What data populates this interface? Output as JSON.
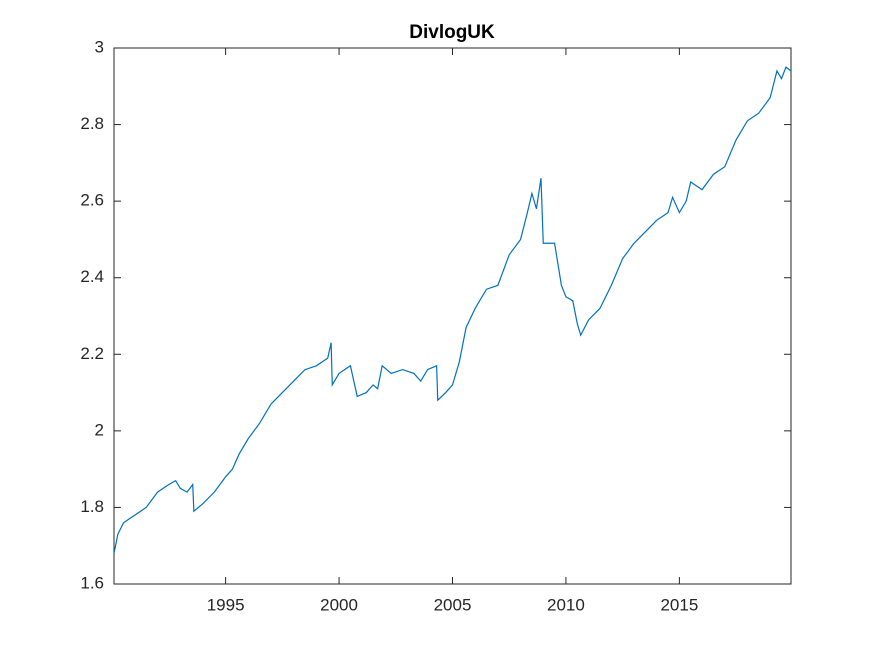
{
  "chart_data": {
    "type": "line",
    "title": "DivlogUK",
    "x": [
      1990.08,
      1990.25,
      1990.5,
      1991.0,
      1991.5,
      1992.0,
      1992.5,
      1992.8,
      1993.0,
      1993.3,
      1993.55,
      1993.6,
      1994.0,
      1994.5,
      1995.0,
      1995.3,
      1995.6,
      1996.0,
      1996.5,
      1997.0,
      1997.5,
      1998.0,
      1998.5,
      1999.0,
      1999.5,
      1999.65,
      1999.7,
      2000.0,
      2000.5,
      2000.8,
      2001.2,
      2001.5,
      2001.7,
      2001.9,
      2002.3,
      2002.8,
      2003.3,
      2003.6,
      2003.9,
      2004.3,
      2004.35,
      2004.7,
      2005.0,
      2005.3,
      2005.6,
      2006.0,
      2006.5,
      2007.0,
      2007.5,
      2008.0,
      2008.3,
      2008.5,
      2008.7,
      2008.9,
      2009.0,
      2009.5,
      2009.8,
      2010.0,
      2010.3,
      2010.5,
      2010.65,
      2011.0,
      2011.5,
      2012.0,
      2012.5,
      2013.0,
      2013.5,
      2014.0,
      2014.5,
      2014.7,
      2015.0,
      2015.3,
      2015.5,
      2016.0,
      2016.5,
      2017.0,
      2017.5,
      2018.0,
      2018.5,
      2019.0,
      2019.3,
      2019.5,
      2019.7,
      2019.92
    ],
    "series": [
      {
        "name": "DivlogUK",
        "color": "#0072bd",
        "values": [
          1.68,
          1.73,
          1.76,
          1.78,
          1.8,
          1.84,
          1.86,
          1.87,
          1.85,
          1.84,
          1.86,
          1.79,
          1.81,
          1.84,
          1.88,
          1.9,
          1.94,
          1.98,
          2.02,
          2.07,
          2.1,
          2.13,
          2.16,
          2.17,
          2.19,
          2.23,
          2.12,
          2.15,
          2.17,
          2.09,
          2.1,
          2.12,
          2.11,
          2.17,
          2.15,
          2.16,
          2.15,
          2.13,
          2.16,
          2.17,
          2.08,
          2.1,
          2.12,
          2.18,
          2.27,
          2.32,
          2.37,
          2.38,
          2.46,
          2.5,
          2.57,
          2.62,
          2.58,
          2.66,
          2.49,
          2.49,
          2.38,
          2.35,
          2.34,
          2.28,
          2.25,
          2.29,
          2.32,
          2.38,
          2.45,
          2.49,
          2.52,
          2.55,
          2.57,
          2.61,
          2.57,
          2.6,
          2.65,
          2.63,
          2.67,
          2.69,
          2.76,
          2.81,
          2.83,
          2.87,
          2.94,
          2.92,
          2.95,
          2.94
        ]
      }
    ],
    "xlim": [
      1990.08,
      2019.92
    ],
    "xticks": [
      1995,
      2000,
      2005,
      2010,
      2015
    ],
    "ylim": [
      1.6,
      3
    ],
    "yticks": [
      1.6,
      1.8,
      2,
      2.2,
      2.4,
      2.6,
      2.8,
      3
    ]
  }
}
